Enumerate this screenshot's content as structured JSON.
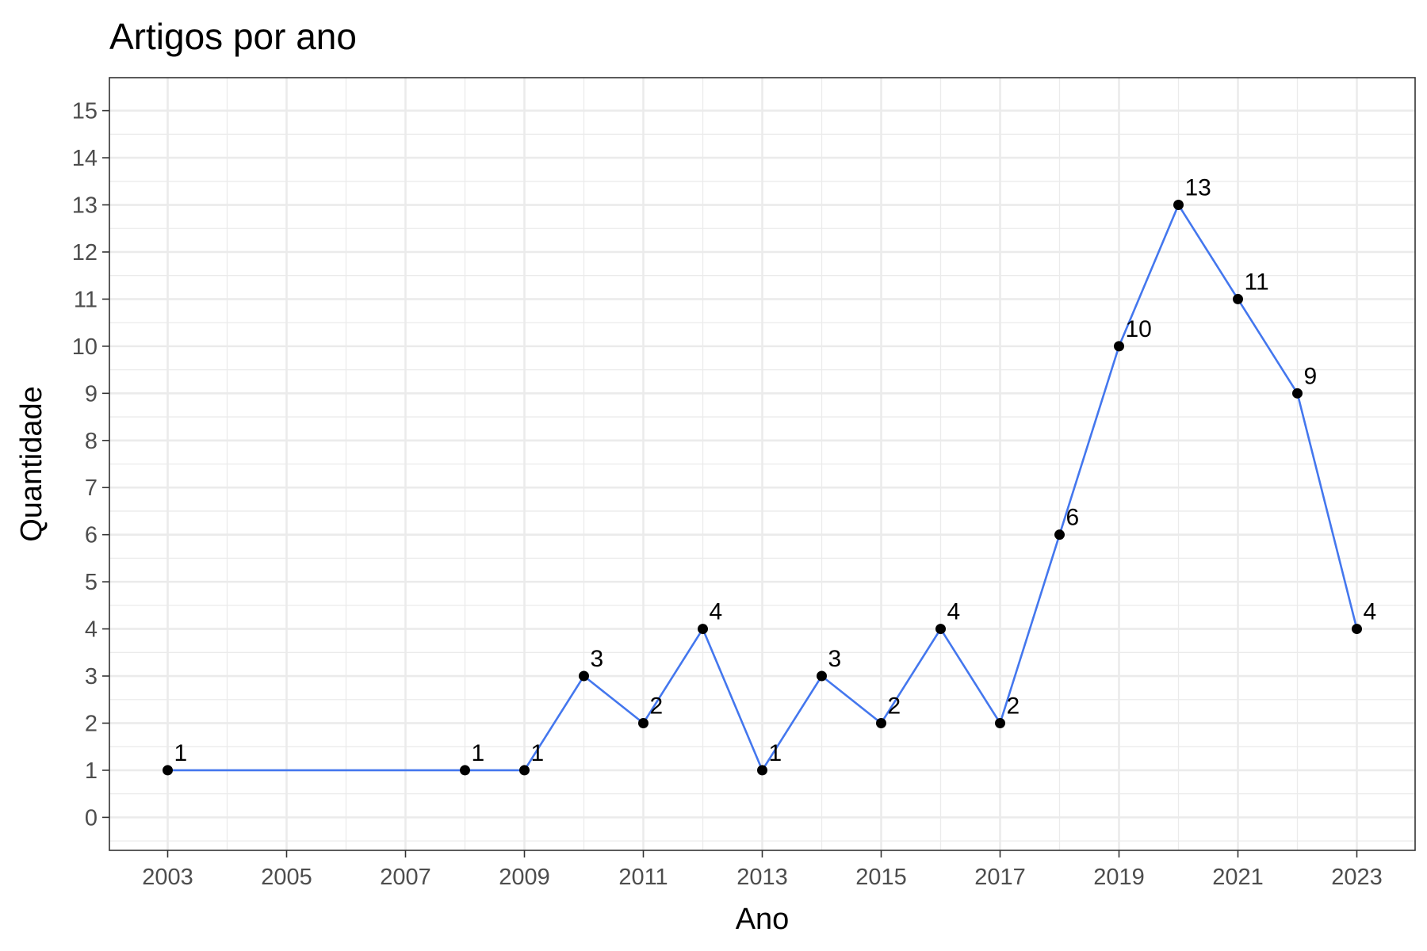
{
  "chart_data": {
    "type": "line",
    "title": "Artigos por ano",
    "xlabel": "Ano",
    "ylabel": "Quantidade",
    "x": [
      2003,
      2008,
      2009,
      2010,
      2011,
      2012,
      2013,
      2014,
      2015,
      2016,
      2017,
      2018,
      2019,
      2020,
      2021,
      2022,
      2023
    ],
    "y": [
      1,
      1,
      1,
      3,
      2,
      4,
      1,
      3,
      2,
      4,
      2,
      6,
      10,
      13,
      11,
      9,
      4
    ],
    "x_ticks": [
      "2003",
      "2005",
      "2007",
      "2009",
      "2011",
      "2013",
      "2015",
      "2017",
      "2019",
      "2021",
      "2023"
    ],
    "y_ticks": [
      "0",
      "1",
      "2",
      "3",
      "4",
      "5",
      "6",
      "7",
      "8",
      "9",
      "10",
      "11",
      "12",
      "13",
      "14",
      "15"
    ],
    "xlim": [
      2002.02,
      2023.98
    ],
    "ylim": [
      -0.7,
      15.7
    ],
    "grid": true,
    "legend": "none",
    "colors": {
      "line": "#4477ee",
      "point": "#000000",
      "grid": "#ebebeb",
      "panel_border": "#333333"
    }
  }
}
